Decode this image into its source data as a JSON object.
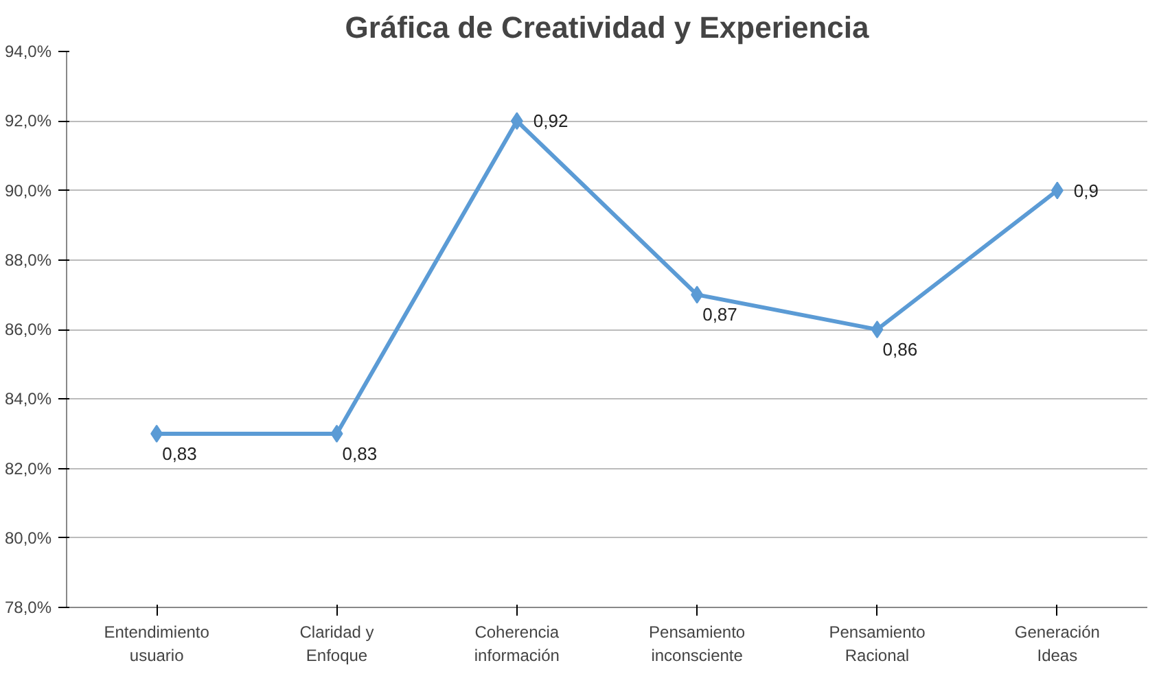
{
  "chart_data": {
    "type": "line",
    "title": "Gráfica de Creatividad y Experiencia",
    "categories": [
      "Entendimiento\nusuario",
      "Claridad y\nEnfoque",
      "Coherencia\ninformación",
      "Pensamiento\ninconsciente",
      "Pensamiento\nRacional",
      "Generación\nIdeas"
    ],
    "series": [
      {
        "color": "#5b9bd5",
        "values": [
          0.83,
          0.83,
          0.92,
          0.87,
          0.86,
          0.9
        ],
        "value_labels": [
          "0,83",
          "0,83",
          "0,92",
          "0,87",
          "0,86",
          "0,9"
        ]
      }
    ],
    "ylim": [
      0.78,
      0.94
    ],
    "yticks": [
      {
        "value": 0.78,
        "label": "78,0%"
      },
      {
        "value": 0.8,
        "label": "80,0%"
      },
      {
        "value": 0.82,
        "label": "82,0%"
      },
      {
        "value": 0.84,
        "label": "84,0%"
      },
      {
        "value": 0.86,
        "label": "86,0%"
      },
      {
        "value": 0.88,
        "label": "88,0%"
      },
      {
        "value": 0.9,
        "label": "90,0%"
      },
      {
        "value": 0.92,
        "label": "92,0%"
      },
      {
        "value": 0.94,
        "label": "94,0%"
      }
    ],
    "grid": "y",
    "marker": "diamond",
    "line_style": "solid"
  }
}
